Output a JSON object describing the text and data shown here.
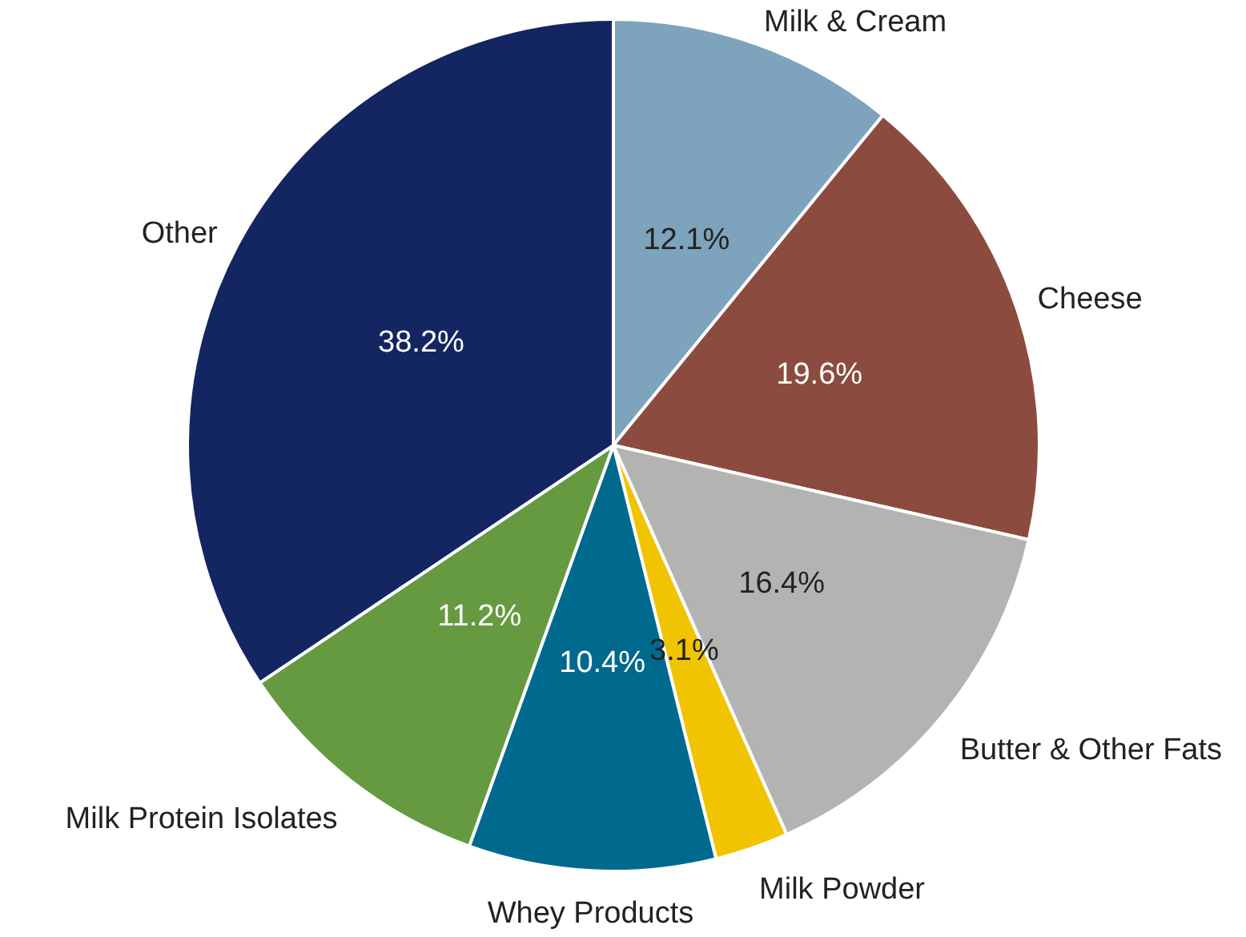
{
  "chart_data": {
    "type": "pie",
    "categories": [
      "Milk & Cream",
      "Cheese",
      "Butter & Other Fats",
      "Milk Powder",
      "Whey Products",
      "Milk Protein Isolates",
      "Other"
    ],
    "values": [
      12.1,
      19.6,
      16.4,
      3.1,
      10.4,
      11.2,
      38.2
    ],
    "value_labels": [
      "12.1%",
      "19.6%",
      "16.4%",
      "3.1%",
      "10.4%",
      "11.2%",
      "38.2%"
    ],
    "colors": [
      "#7ea3bc",
      "#8b4c3f",
      "#b3b4b2",
      "#f0c400",
      "#006a8e",
      "#659a41",
      "#142661"
    ],
    "legend": false
  }
}
